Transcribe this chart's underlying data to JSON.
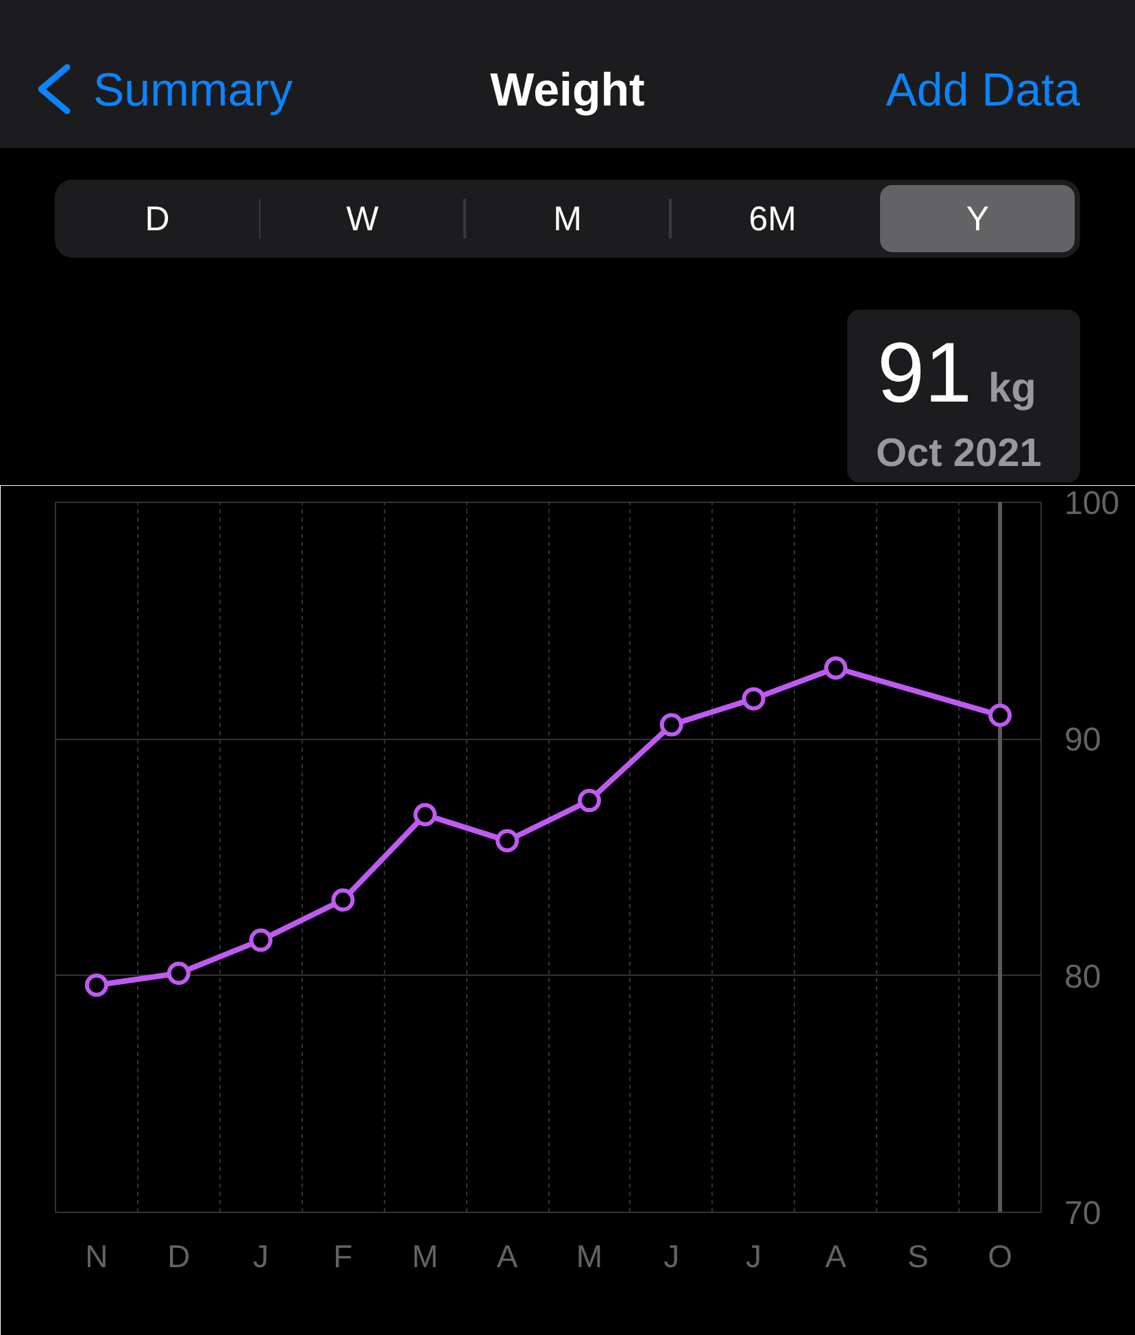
{
  "chart_data": {
    "type": "line",
    "title": "Weight",
    "annotations": [
      "Summary",
      "Add Data",
      "D",
      "W",
      "M",
      "6M",
      "Y",
      "91",
      "kg"
    ],
    "categories": [
      "N",
      "D",
      "J",
      "F",
      "M",
      "A",
      "M",
      "J",
      "J",
      "A",
      "S",
      "O"
    ],
    "ylim": [
      70,
      100
    ],
    "yticks": [
      70,
      80,
      90,
      100
    ],
    "grid": true,
    "marker": "circle",
    "line_style": "solid",
    "series": [
      {
        "color": "#bf5af2",
        "values": [
          79.6,
          80.1,
          81.5,
          83.2,
          86.8,
          85.7,
          87.4,
          90.6,
          91.7,
          93.0,
          null,
          91
        ]
      }
    ],
    "ref_lines": [
      {
        "axis": "x",
        "value": "O",
        "color": "#5a5a5e",
        "label": "Oct 2021"
      }
    ]
  }
}
